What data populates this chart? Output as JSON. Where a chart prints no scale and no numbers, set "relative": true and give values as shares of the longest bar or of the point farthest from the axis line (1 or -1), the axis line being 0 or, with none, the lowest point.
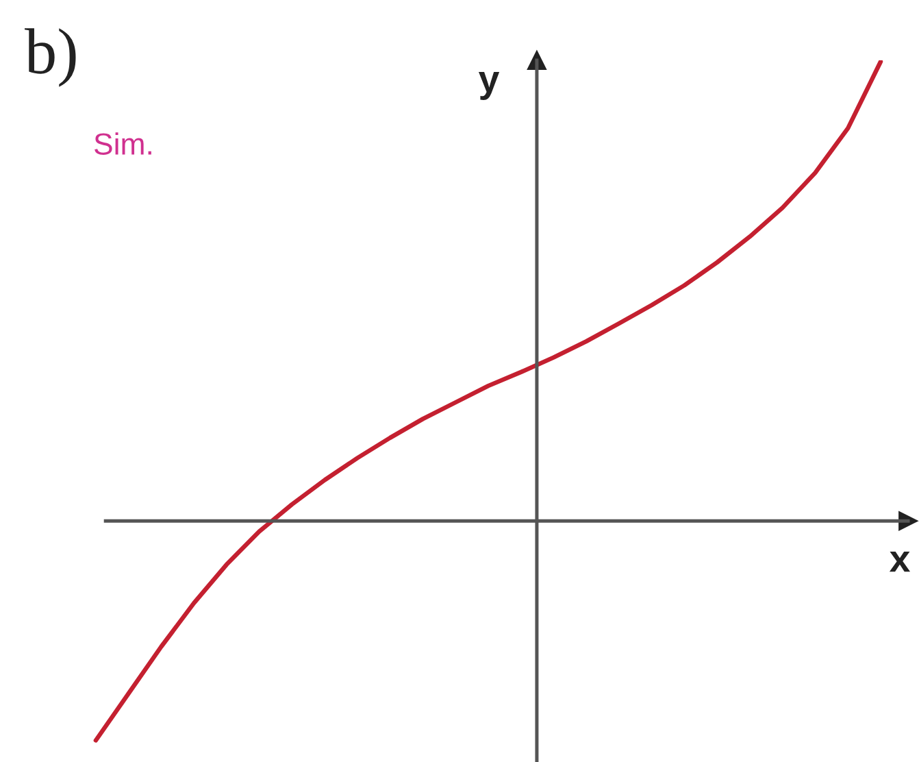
{
  "chart_data": {
    "type": "line",
    "title": "b)",
    "xlabel": "x",
    "ylabel": "y",
    "annotations": [
      "Sim."
    ],
    "relative": true,
    "categories": [
      null,
      null,
      null,
      null,
      null,
      null,
      null,
      null,
      null,
      null,
      null,
      null,
      null,
      null,
      null,
      null,
      null,
      null,
      null,
      null,
      null,
      null,
      null,
      null,
      null
    ],
    "color": "#c42030",
    "values": [
      -0.478,
      -0.376,
      -0.274,
      -0.179,
      -0.095,
      -0.023,
      0.036,
      0.089,
      0.137,
      0.181,
      0.222,
      0.258,
      0.294,
      0.324,
      0.356,
      0.391,
      0.43,
      0.47,
      0.513,
      0.563,
      0.619,
      0.682,
      0.758,
      0.855,
      1.0
    ]
  }
}
